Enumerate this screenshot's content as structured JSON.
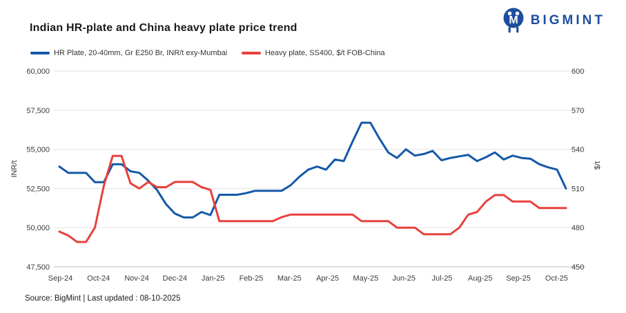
{
  "header": {
    "title": "Indian HR-plate and China heavy plate price trend"
  },
  "brand": {
    "name": "BIGMINT",
    "color": "#1D4E9E",
    "icon": "bigmint-m-circle-logo"
  },
  "footer": {
    "source_line": "Source: BigMint | Last updated : 08-10-2025"
  },
  "chart_data": {
    "type": "line",
    "title": "Indian HR-plate and China heavy plate price trend",
    "grid": true,
    "legend_position": "top",
    "x_tick_labels": [
      "Sep-24",
      "Oct-24",
      "Nov-24",
      "Dec-24",
      "Jan-25",
      "Feb-25",
      "Mar-25",
      "Apr-25",
      "May-25",
      "Jun-25",
      "Jul-25",
      "Aug-25",
      "Sep-25",
      "Oct-25"
    ],
    "left_axis": {
      "label": "INR/t",
      "min": 47500,
      "max": 60000,
      "ticks": [
        60000,
        57500,
        55000,
        52500,
        50000,
        47500
      ]
    },
    "right_axis": {
      "label": "$/t",
      "min": 450,
      "max": 600,
      "ticks": [
        600,
        570,
        540,
        510,
        480,
        450
      ]
    },
    "colors": {
      "grid": "#e2e2e2",
      "axis": "#b9b9b9"
    },
    "series": [
      {
        "name": "HR Plate, 20-40mm, Gr E250 Br, INR/t exy-Mumbai",
        "axis": "left",
        "color": "#1458A8",
        "frequency": "weekly",
        "values": [
          53900,
          53500,
          53500,
          53500,
          52900,
          52900,
          54050,
          54050,
          53600,
          53500,
          53000,
          52400,
          51500,
          50900,
          50650,
          50650,
          51000,
          50800,
          52100,
          52100,
          52100,
          52200,
          52350,
          52350,
          52350,
          52350,
          52700,
          53250,
          53700,
          53900,
          53700,
          54350,
          54250,
          55500,
          56700,
          56700,
          55700,
          54800,
          54450,
          55000,
          54600,
          54700,
          54900,
          54300,
          54450,
          54550,
          54650,
          54250,
          54500,
          54800,
          54350,
          54600,
          54450,
          54400,
          54050,
          53850,
          53700,
          52500
        ]
      },
      {
        "name": "Heavy plate, SS400, $/t FOB-China",
        "axis": "right",
        "color": "#E8403C",
        "frequency": "weekly",
        "values": [
          477,
          474,
          469,
          469,
          480,
          512,
          535,
          535,
          514,
          510,
          515,
          511,
          511,
          515,
          515,
          515,
          511,
          509,
          485,
          485,
          485,
          485,
          485,
          485,
          485,
          488,
          490,
          490,
          490,
          490,
          490,
          490,
          490,
          490,
          485,
          485,
          485,
          485,
          480,
          480,
          480,
          475,
          475,
          475,
          475,
          480,
          490,
          492,
          500,
          505,
          505,
          500,
          500,
          500,
          495,
          495,
          495,
          495
        ]
      }
    ]
  }
}
